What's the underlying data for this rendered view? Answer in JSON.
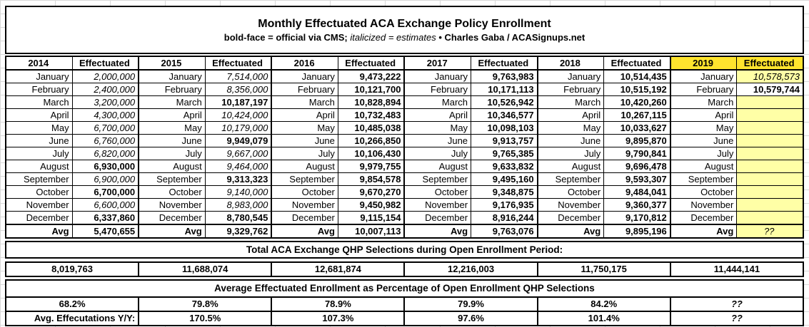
{
  "title": "Monthly Effectuated ACA Exchange Policy Enrollment",
  "subtitle": {
    "bold1": "bold-face = official via CMS;",
    "italic": "italicized = estimates",
    "bullet": "•",
    "bold2": "Charles Gaba / ACASignups.net"
  },
  "colors": {
    "header_highlight_yellow": "#ffe42e",
    "pending_cell_yellow": "#ffffa6",
    "border_black": "#000000"
  },
  "months_table": {
    "value_header": "Effectuated",
    "avg_label": "Avg",
    "years": [
      {
        "year": "2014",
        "highlight": false,
        "values": [
          {
            "m": "January",
            "v": "2,000,000",
            "s": "est"
          },
          {
            "m": "February",
            "v": "2,400,000",
            "s": "est"
          },
          {
            "m": "March",
            "v": "3,200,000",
            "s": "est"
          },
          {
            "m": "April",
            "v": "4,300,000",
            "s": "est"
          },
          {
            "m": "May",
            "v": "6,700,000",
            "s": "est"
          },
          {
            "m": "June",
            "v": "6,760,000",
            "s": "est"
          },
          {
            "m": "July",
            "v": "6,820,000",
            "s": "est"
          },
          {
            "m": "August",
            "v": "6,930,000",
            "s": "off"
          },
          {
            "m": "September",
            "v": "6,900,000",
            "s": "est"
          },
          {
            "m": "October",
            "v": "6,700,000",
            "s": "off"
          },
          {
            "m": "November",
            "v": "6,600,000",
            "s": "est"
          },
          {
            "m": "December",
            "v": "6,337,860",
            "s": "off"
          }
        ],
        "avg": {
          "v": "5,470,655",
          "s": "off"
        }
      },
      {
        "year": "2015",
        "highlight": false,
        "values": [
          {
            "m": "January",
            "v": "7,514,000",
            "s": "est"
          },
          {
            "m": "February",
            "v": "8,356,000",
            "s": "est"
          },
          {
            "m": "March",
            "v": "10,187,197",
            "s": "off"
          },
          {
            "m": "April",
            "v": "10,424,000",
            "s": "est"
          },
          {
            "m": "May",
            "v": "10,179,000",
            "s": "est"
          },
          {
            "m": "June",
            "v": "9,949,079",
            "s": "off"
          },
          {
            "m": "July",
            "v": "9,667,000",
            "s": "est"
          },
          {
            "m": "August",
            "v": "9,464,000",
            "s": "est"
          },
          {
            "m": "September",
            "v": "9,313,323",
            "s": "off"
          },
          {
            "m": "October",
            "v": "9,140,000",
            "s": "est"
          },
          {
            "m": "November",
            "v": "8,983,000",
            "s": "est"
          },
          {
            "m": "December",
            "v": "8,780,545",
            "s": "off"
          }
        ],
        "avg": {
          "v": "9,329,762",
          "s": "off"
        }
      },
      {
        "year": "2016",
        "highlight": false,
        "values": [
          {
            "m": "January",
            "v": "9,473,222",
            "s": "off"
          },
          {
            "m": "February",
            "v": "10,121,700",
            "s": "off"
          },
          {
            "m": "March",
            "v": "10,828,894",
            "s": "off"
          },
          {
            "m": "April",
            "v": "10,732,483",
            "s": "off"
          },
          {
            "m": "May",
            "v": "10,485,038",
            "s": "off"
          },
          {
            "m": "June",
            "v": "10,266,850",
            "s": "off"
          },
          {
            "m": "July",
            "v": "10,106,430",
            "s": "off"
          },
          {
            "m": "August",
            "v": "9,979,755",
            "s": "off"
          },
          {
            "m": "September",
            "v": "9,854,578",
            "s": "off"
          },
          {
            "m": "October",
            "v": "9,670,270",
            "s": "off"
          },
          {
            "m": "November",
            "v": "9,450,982",
            "s": "off"
          },
          {
            "m": "December",
            "v": "9,115,154",
            "s": "off"
          }
        ],
        "avg": {
          "v": "10,007,113",
          "s": "off"
        }
      },
      {
        "year": "2017",
        "highlight": false,
        "values": [
          {
            "m": "January",
            "v": "9,763,983",
            "s": "off"
          },
          {
            "m": "February",
            "v": "10,171,113",
            "s": "off"
          },
          {
            "m": "March",
            "v": "10,526,942",
            "s": "off"
          },
          {
            "m": "April",
            "v": "10,346,577",
            "s": "off"
          },
          {
            "m": "May",
            "v": "10,098,103",
            "s": "off"
          },
          {
            "m": "June",
            "v": "9,913,757",
            "s": "off"
          },
          {
            "m": "July",
            "v": "9,765,385",
            "s": "off"
          },
          {
            "m": "August",
            "v": "9,633,832",
            "s": "off"
          },
          {
            "m": "September",
            "v": "9,495,160",
            "s": "off"
          },
          {
            "m": "October",
            "v": "9,348,875",
            "s": "off"
          },
          {
            "m": "November",
            "v": "9,176,935",
            "s": "off"
          },
          {
            "m": "December",
            "v": "8,916,244",
            "s": "off"
          }
        ],
        "avg": {
          "v": "9,763,076",
          "s": "off"
        }
      },
      {
        "year": "2018",
        "highlight": false,
        "values": [
          {
            "m": "January",
            "v": "10,514,435",
            "s": "off"
          },
          {
            "m": "February",
            "v": "10,515,192",
            "s": "off"
          },
          {
            "m": "March",
            "v": "10,420,260",
            "s": "off"
          },
          {
            "m": "April",
            "v": "10,267,115",
            "s": "off"
          },
          {
            "m": "May",
            "v": "10,033,627",
            "s": "off"
          },
          {
            "m": "June",
            "v": "9,895,870",
            "s": "off"
          },
          {
            "m": "July",
            "v": "9,790,841",
            "s": "off"
          },
          {
            "m": "August",
            "v": "9,696,478",
            "s": "off"
          },
          {
            "m": "September",
            "v": "9,593,307",
            "s": "off"
          },
          {
            "m": "October",
            "v": "9,484,041",
            "s": "off"
          },
          {
            "m": "November",
            "v": "9,360,377",
            "s": "off"
          },
          {
            "m": "December",
            "v": "9,170,812",
            "s": "off"
          }
        ],
        "avg": {
          "v": "9,895,196",
          "s": "off"
        }
      },
      {
        "year": "2019",
        "highlight": true,
        "values": [
          {
            "m": "January",
            "v": "10,578,573",
            "s": "est",
            "bg": "pale"
          },
          {
            "m": "February",
            "v": "10,579,744",
            "s": "off"
          },
          {
            "m": "March",
            "v": "",
            "s": "off",
            "bg": "pale"
          },
          {
            "m": "April",
            "v": "",
            "s": "off",
            "bg": "pale"
          },
          {
            "m": "May",
            "v": "",
            "s": "off",
            "bg": "pale"
          },
          {
            "m": "June",
            "v": "",
            "s": "off",
            "bg": "pale"
          },
          {
            "m": "July",
            "v": "",
            "s": "off",
            "bg": "pale"
          },
          {
            "m": "August",
            "v": "",
            "s": "off",
            "bg": "pale"
          },
          {
            "m": "September",
            "v": "",
            "s": "off",
            "bg": "pale"
          },
          {
            "m": "October",
            "v": "",
            "s": "off",
            "bg": "pale"
          },
          {
            "m": "November",
            "v": "",
            "s": "off",
            "bg": "pale"
          },
          {
            "m": "December",
            "v": "",
            "s": "off",
            "bg": "pale"
          }
        ],
        "avg": {
          "v": "??",
          "s": "est",
          "bg": "pale",
          "align": "center"
        }
      }
    ]
  },
  "sections": {
    "total_header": "Total ACA Exchange QHP Selections during Open Enrollment Period:",
    "totals": [
      "8,019,763",
      "11,688,074",
      "12,681,874",
      "12,216,003",
      "11,750,175",
      "11,444,141"
    ],
    "avg_pct_header": "Average Effectuated Enrollment as Percentage of Open Enrollment QHP Selections",
    "percentages": [
      "68.2%",
      "79.8%",
      "78.9%",
      "79.9%",
      "84.2%",
      "??"
    ],
    "yoy_label": "Avg. Effecutations Y/Y:",
    "yoy": [
      "170.5%",
      "107.3%",
      "97.6%",
      "101.4%",
      "??"
    ]
  }
}
